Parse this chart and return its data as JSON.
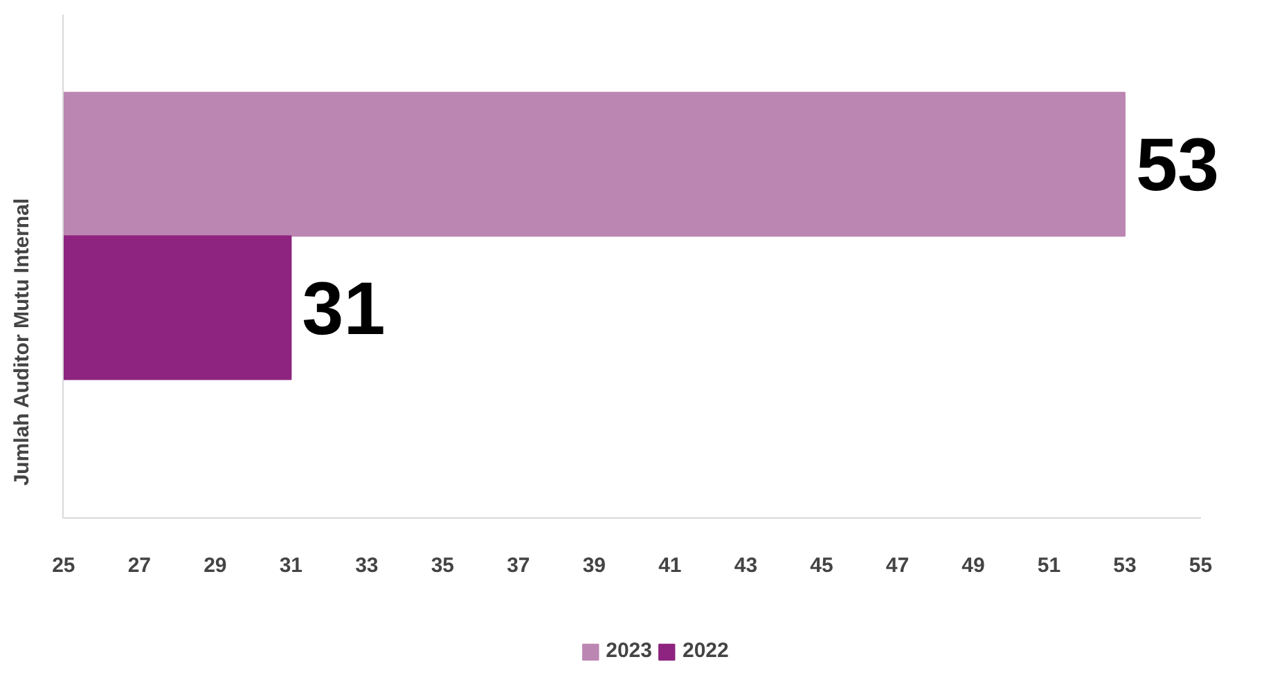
{
  "chart_data": {
    "type": "bar",
    "orientation": "horizontal",
    "ylabel": "Jumlah Auditor Mutu Internal",
    "categories": [
      null
    ],
    "series": [
      {
        "name": "2023",
        "color": "#bc86b2",
        "values": [
          53
        ]
      },
      {
        "name": "2022",
        "color": "#8e2480",
        "values": [
          31
        ]
      }
    ],
    "xlim": [
      25,
      55
    ],
    "xticks": [
      25,
      27,
      29,
      31,
      33,
      35,
      37,
      39,
      41,
      43,
      45,
      47,
      49,
      51,
      53,
      55
    ],
    "grid": false,
    "legend": "bottom",
    "data_labels": true
  }
}
